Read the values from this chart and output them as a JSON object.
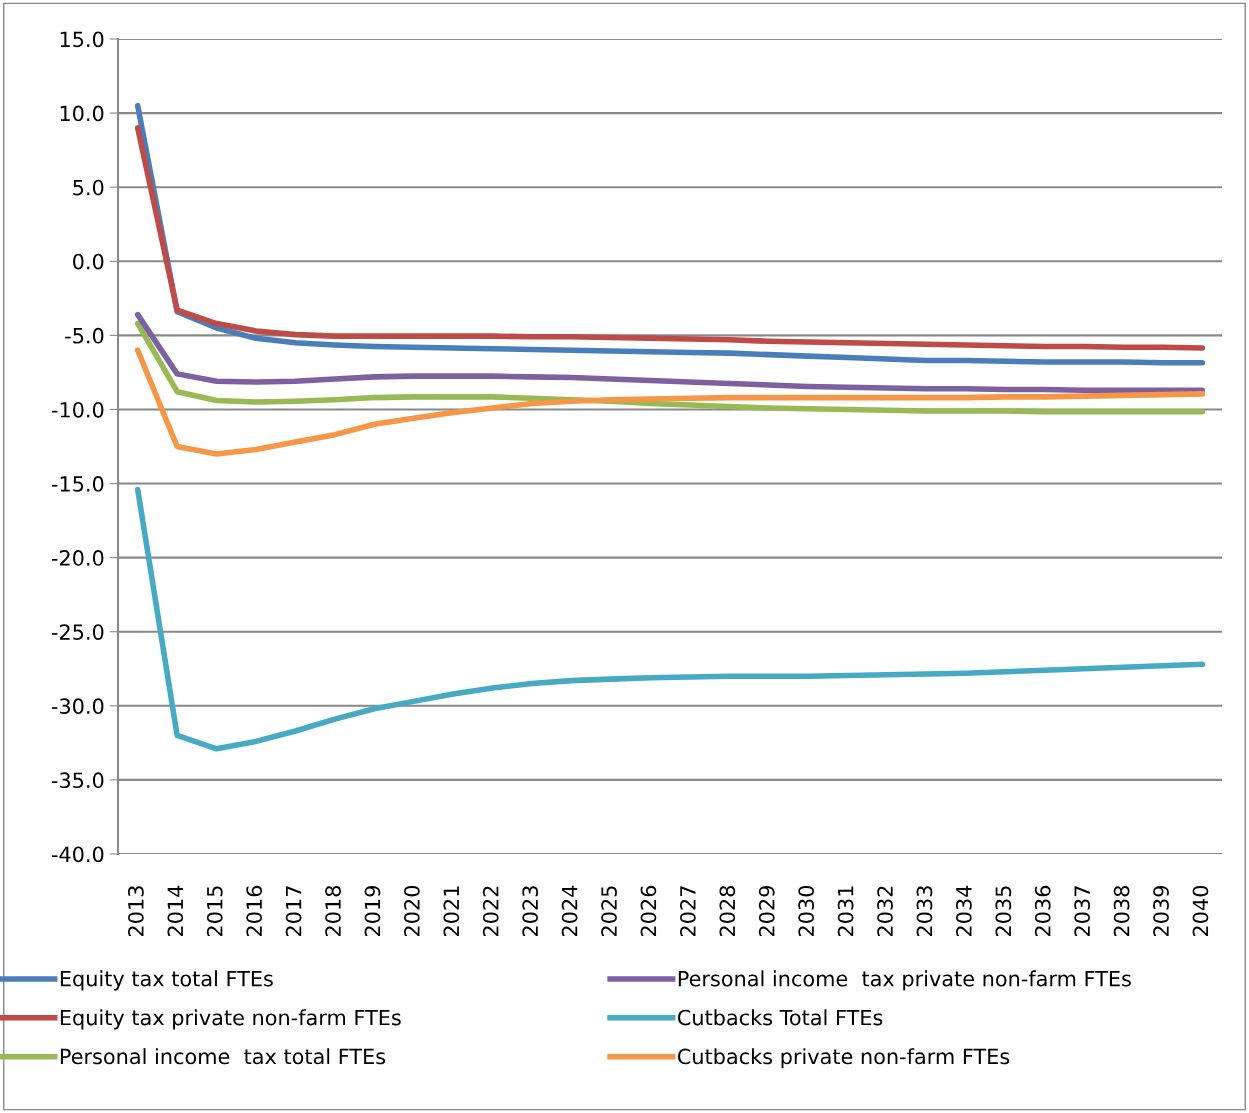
{
  "chart_data": {
    "type": "line",
    "categories": [
      "2013",
      "2014",
      "2015",
      "2016",
      "2017",
      "2018",
      "2019",
      "2020",
      "2021",
      "2022",
      "2023",
      "2024",
      "2025",
      "2026",
      "2027",
      "2028",
      "2029",
      "2030",
      "2031",
      "2032",
      "2033",
      "2034",
      "2035",
      "2036",
      "2037",
      "2038",
      "2039",
      "2040"
    ],
    "series": [
      {
        "name": "Equity tax total FTEs",
        "color": "#4a7ebb",
        "values": [
          10.5,
          -3.4,
          -4.5,
          -5.2,
          -5.5,
          -5.65,
          -5.75,
          -5.8,
          -5.85,
          -5.9,
          -5.95,
          -6.0,
          -6.05,
          -6.1,
          -6.15,
          -6.2,
          -6.3,
          -6.4,
          -6.5,
          -6.6,
          -6.7,
          -6.7,
          -6.75,
          -6.8,
          -6.8,
          -6.8,
          -6.85,
          -6.85
        ]
      },
      {
        "name": "Equity tax private non-farm FTEs",
        "color": "#be4b48",
        "values": [
          9.0,
          -3.3,
          -4.2,
          -4.7,
          -4.95,
          -5.05,
          -5.05,
          -5.05,
          -5.05,
          -5.05,
          -5.1,
          -5.1,
          -5.15,
          -5.2,
          -5.25,
          -5.3,
          -5.4,
          -5.45,
          -5.5,
          -5.55,
          -5.6,
          -5.65,
          -5.7,
          -5.75,
          -5.75,
          -5.8,
          -5.8,
          -5.85
        ]
      },
      {
        "name": "Personal income  tax total FTEs",
        "color": "#98b954",
        "values": [
          -4.2,
          -8.8,
          -9.4,
          -9.5,
          -9.45,
          -9.35,
          -9.2,
          -9.15,
          -9.15,
          -9.15,
          -9.25,
          -9.35,
          -9.45,
          -9.6,
          -9.7,
          -9.8,
          -9.9,
          -9.95,
          -10.0,
          -10.05,
          -10.1,
          -10.1,
          -10.1,
          -10.15,
          -10.15,
          -10.15,
          -10.15,
          -10.15
        ]
      },
      {
        "name": "Personal income  tax private non-farm FTEs",
        "color": "#7d60a0",
        "values": [
          -3.6,
          -7.6,
          -8.1,
          -8.15,
          -8.1,
          -7.95,
          -7.8,
          -7.75,
          -7.75,
          -7.75,
          -7.8,
          -7.85,
          -7.95,
          -8.05,
          -8.15,
          -8.25,
          -8.35,
          -8.45,
          -8.5,
          -8.55,
          -8.6,
          -8.6,
          -8.65,
          -8.65,
          -8.7,
          -8.7,
          -8.7,
          -8.7
        ]
      },
      {
        "name": "Cutbacks Total FTEs",
        "color": "#46aac5",
        "values": [
          -15.4,
          -32.0,
          -32.9,
          -32.4,
          -31.7,
          -30.9,
          -30.2,
          -29.7,
          -29.2,
          -28.8,
          -28.5,
          -28.3,
          -28.2,
          -28.1,
          -28.05,
          -28.0,
          -28.0,
          -28.0,
          -27.95,
          -27.9,
          -27.85,
          -27.8,
          -27.7,
          -27.6,
          -27.5,
          -27.4,
          -27.3,
          -27.2
        ]
      },
      {
        "name": "Cutbacks private non-farm FTEs",
        "color": "#f79646",
        "values": [
          -6.0,
          -12.5,
          -13.0,
          -12.7,
          -12.2,
          -11.7,
          -11.0,
          -10.6,
          -10.2,
          -9.9,
          -9.6,
          -9.45,
          -9.35,
          -9.3,
          -9.25,
          -9.2,
          -9.2,
          -9.2,
          -9.2,
          -9.2,
          -9.2,
          -9.2,
          -9.15,
          -9.15,
          -9.1,
          -9.05,
          -9.0,
          -8.95
        ]
      }
    ],
    "ylim": [
      -40,
      15
    ],
    "yticks": [
      {
        "value": 15,
        "label": "15.0"
      },
      {
        "value": 10,
        "label": "10.0"
      },
      {
        "value": 5,
        "label": "5.0"
      },
      {
        "value": 0,
        "label": "0.0"
      },
      {
        "value": -5,
        "label": "-5.0"
      },
      {
        "value": -10,
        "label": "-10.0"
      },
      {
        "value": -15,
        "label": "-15.0"
      },
      {
        "value": -20,
        "label": "-20.0"
      },
      {
        "value": -25,
        "label": "-25.0"
      },
      {
        "value": -30,
        "label": "-30.0"
      },
      {
        "value": -35,
        "label": "-35.0"
      },
      {
        "value": -40,
        "label": "-40.0"
      }
    ],
    "grid": "y",
    "legend": "bottom",
    "marker": "none",
    "line_style": "solid"
  }
}
